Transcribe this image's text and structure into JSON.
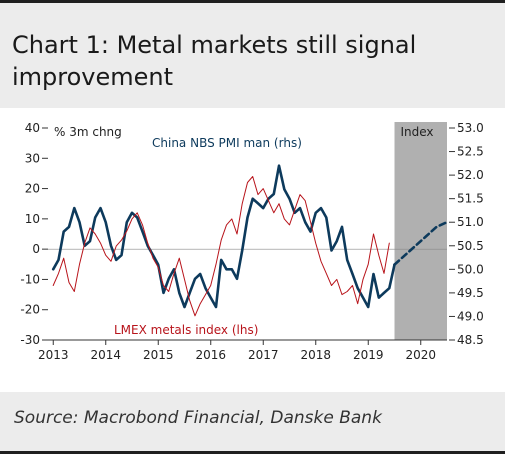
{
  "title": "Chart 1: Metal markets still signal improvement",
  "source": "Source: Macrobond Financial, Danske Bank",
  "chart_data": {
    "type": "line",
    "left_axis_note": "% 3m chng",
    "right_axis_note": "Index",
    "left_ticks": [
      40,
      30,
      20,
      10,
      0,
      -10,
      -20,
      -30
    ],
    "left_ylim": [
      -30,
      40
    ],
    "right_ticks": [
      53.0,
      52.5,
      52.0,
      51.5,
      51.0,
      50.5,
      50.0,
      49.5,
      49.0,
      48.5
    ],
    "right_ylim": [
      48.5,
      53.0
    ],
    "x_ticks": [
      "2013",
      "2014",
      "2015",
      "2016",
      "2017",
      "2018",
      "2019",
      "2020"
    ],
    "xlim": [
      2012.9,
      2020.5
    ],
    "forecast_shade_start": 2019.5,
    "series": [
      {
        "name": "China NBS PMI man (rhs)",
        "axis": "right",
        "color": "#0d3a5c",
        "x": [
          2013.0,
          2013.1,
          2013.2,
          2013.3,
          2013.4,
          2013.5,
          2013.6,
          2013.7,
          2013.8,
          2013.9,
          2014.0,
          2014.1,
          2014.2,
          2014.3,
          2014.4,
          2014.5,
          2014.6,
          2014.7,
          2014.8,
          2014.9,
          2015.0,
          2015.1,
          2015.2,
          2015.3,
          2015.4,
          2015.5,
          2015.6,
          2015.7,
          2015.8,
          2015.9,
          2016.0,
          2016.1,
          2016.2,
          2016.3,
          2016.4,
          2016.5,
          2016.6,
          2016.7,
          2016.8,
          2016.9,
          2017.0,
          2017.1,
          2017.2,
          2017.3,
          2017.4,
          2017.5,
          2017.6,
          2017.7,
          2017.8,
          2017.9,
          2018.0,
          2018.1,
          2018.2,
          2018.3,
          2018.4,
          2018.5,
          2018.6,
          2018.7,
          2018.8,
          2018.9,
          2019.0,
          2019.1,
          2019.2,
          2019.3,
          2019.4,
          2019.5
        ],
        "values": [
          50.0,
          50.2,
          50.8,
          50.9,
          51.3,
          51.0,
          50.5,
          50.6,
          51.1,
          51.3,
          51.0,
          50.5,
          50.2,
          50.3,
          51.0,
          51.2,
          51.1,
          50.8,
          50.5,
          50.3,
          50.1,
          49.5,
          49.8,
          50.0,
          49.5,
          49.2,
          49.5,
          49.8,
          49.9,
          49.6,
          49.4,
          49.2,
          50.2,
          50.0,
          50.0,
          49.8,
          50.4,
          51.1,
          51.5,
          51.4,
          51.3,
          51.5,
          51.6,
          52.2,
          51.7,
          51.5,
          51.2,
          51.3,
          51.0,
          50.8,
          51.2,
          51.3,
          51.1,
          50.4,
          50.6,
          50.9,
          50.2,
          49.9,
          49.6,
          49.4,
          49.2,
          49.9,
          49.4,
          49.5,
          49.6,
          50.1
        ]
      },
      {
        "name": "China NBS PMI man (rhs) forecast",
        "axis": "right",
        "color": "#0d3a5c",
        "dashed": true,
        "x": [
          2019.5,
          2019.7,
          2019.9,
          2020.1,
          2020.3,
          2020.5
        ],
        "values": [
          50.1,
          50.3,
          50.5,
          50.7,
          50.9,
          51.0
        ]
      },
      {
        "name": "LMEX metals index (lhs)",
        "axis": "left",
        "color": "#b8141b",
        "x": [
          2013.0,
          2013.1,
          2013.2,
          2013.3,
          2013.4,
          2013.5,
          2013.6,
          2013.7,
          2013.8,
          2013.9,
          2014.0,
          2014.1,
          2014.2,
          2014.3,
          2014.4,
          2014.5,
          2014.6,
          2014.7,
          2014.8,
          2014.9,
          2015.0,
          2015.1,
          2015.2,
          2015.3,
          2015.4,
          2015.5,
          2015.6,
          2015.7,
          2015.8,
          2015.9,
          2016.0,
          2016.1,
          2016.2,
          2016.3,
          2016.4,
          2016.5,
          2016.6,
          2016.7,
          2016.8,
          2016.9,
          2017.0,
          2017.1,
          2017.2,
          2017.3,
          2017.4,
          2017.5,
          2017.6,
          2017.7,
          2017.8,
          2017.9,
          2018.0,
          2018.1,
          2018.2,
          2018.3,
          2018.4,
          2018.5,
          2018.6,
          2018.7,
          2018.8,
          2018.9,
          2019.0,
          2019.1,
          2019.2,
          2019.3,
          2019.4
        ],
        "values": [
          -12,
          -8,
          -3,
          -11,
          -14,
          -5,
          2,
          7,
          5,
          2,
          -2,
          -4,
          1,
          3,
          6,
          10,
          12,
          8,
          2,
          -3,
          -6,
          -12,
          -14,
          -8,
          -3,
          -10,
          -17,
          -22,
          -18,
          -15,
          -12,
          -5,
          3,
          8,
          10,
          5,
          15,
          22,
          24,
          18,
          20,
          16,
          12,
          15,
          10,
          8,
          13,
          18,
          16,
          9,
          2,
          -4,
          -8,
          -12,
          -10,
          -15,
          -14,
          -12,
          -18,
          -10,
          -5,
          5,
          -2,
          -8,
          2
        ]
      }
    ],
    "annotations": [
      {
        "text": "China NBS PMI man (rhs)",
        "color": "#0d3a5c"
      },
      {
        "text": "LMEX metals index (lhs)",
        "color": "#b8141b"
      }
    ]
  }
}
